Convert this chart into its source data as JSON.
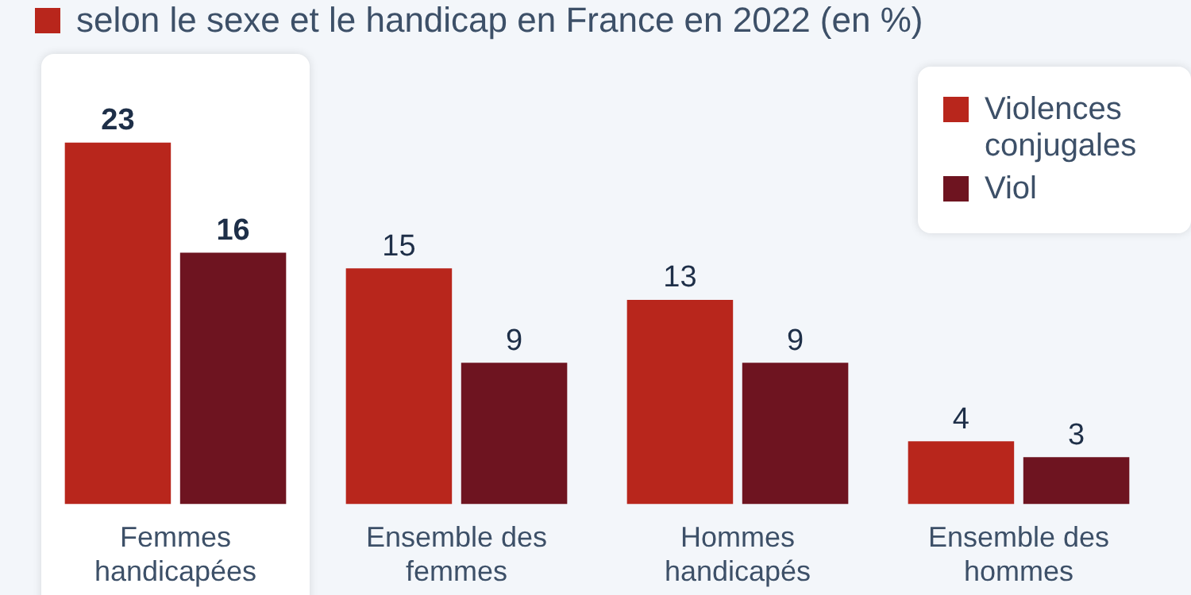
{
  "chart_data": {
    "type": "bar",
    "title": "selon le sexe et le handicap en France en 2022 (en %)",
    "categories": [
      "Femmes handicapées",
      "Ensemble des femmes",
      "Hommes handicapés",
      "Ensemble des hommes"
    ],
    "series": [
      {
        "name": "Violences conjugales",
        "color": "#b8261c",
        "values": [
          23,
          15,
          13,
          4
        ]
      },
      {
        "name": "Viol",
        "color": "#6e1420",
        "values": [
          16,
          9,
          9,
          3
        ]
      }
    ],
    "data_labels": true,
    "legend": "top right",
    "grid": false
  }
}
